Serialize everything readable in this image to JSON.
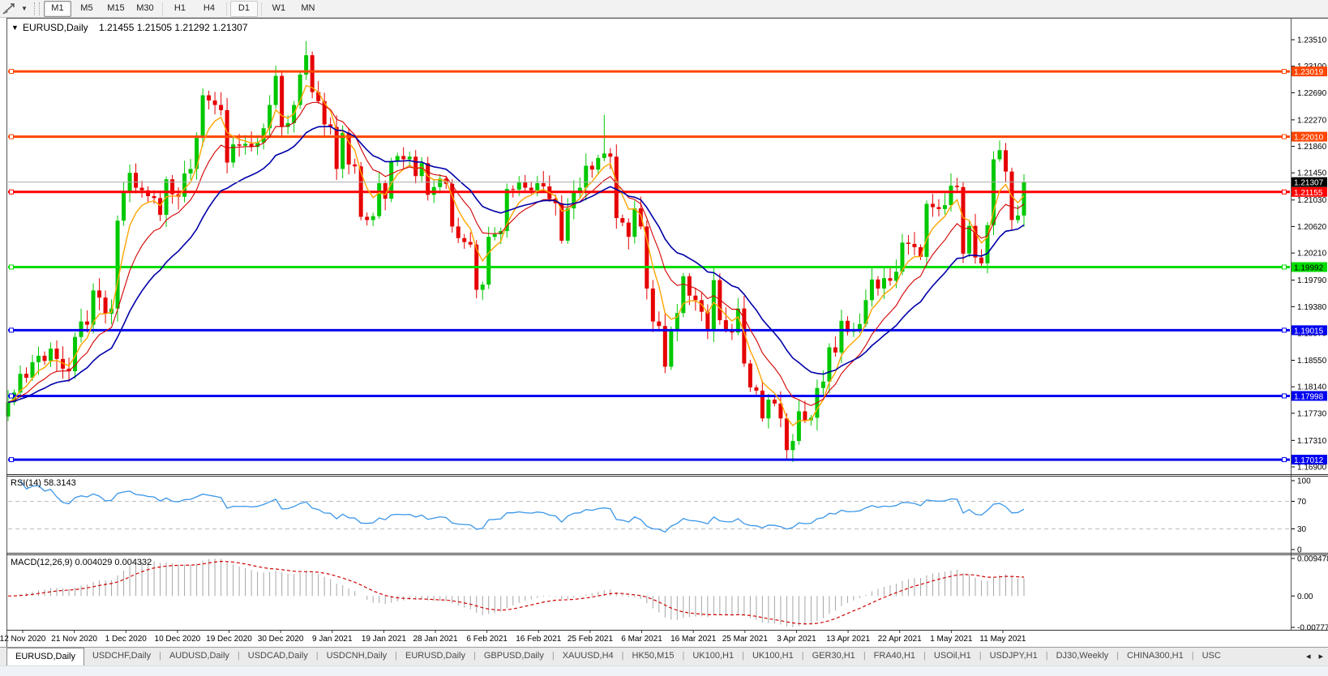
{
  "toolbar": {
    "timeframes": [
      "M1",
      "M5",
      "M15",
      "M30",
      "H1",
      "H4",
      "D1",
      "W1",
      "MN"
    ],
    "active_timeframe": "M1",
    "secondary_highlight": "D1"
  },
  "chart": {
    "title": "EURUSD,Daily",
    "quotes": "1.21455 1.21505 1.21292 1.21307",
    "price_ticks": [
      "1.23510",
      "1.23100",
      "1.22690",
      "1.22270",
      "1.21860",
      "1.21450",
      "1.21030",
      "1.20620",
      "1.20210",
      "1.19790",
      "1.19380",
      "1.18970",
      "1.18550",
      "1.18140",
      "1.17730",
      "1.17310",
      "1.16900"
    ],
    "levels": [
      {
        "label": "1.23019",
        "price": 1.23019,
        "color": "#FF4500",
        "text": "#FFFFFF"
      },
      {
        "label": "1.22010",
        "price": 1.2201,
        "color": "#FF4500",
        "text": "#FFFFFF"
      },
      {
        "label": "1.21155",
        "price": 1.21155,
        "color": "#FF0000",
        "text": "#FFFFFF"
      },
      {
        "label": "1.19992",
        "price": 1.19992,
        "color": "#00DC00",
        "text": "#000000"
      },
      {
        "label": "1.19015",
        "price": 1.19015,
        "color": "#0000F0",
        "text": "#FFFFFF"
      },
      {
        "label": "1.17998",
        "price": 1.17998,
        "color": "#0000F0",
        "text": "#FFFFFF"
      },
      {
        "label": "1.17012",
        "price": 1.17012,
        "color": "#0000F0",
        "text": "#FFFFFF"
      }
    ],
    "current_price": {
      "label": "1.21307",
      "value": 1.21307,
      "bg": "#000000",
      "text": "#FFFFFF"
    },
    "dates": [
      "12 Nov 2020",
      "21 Nov 2020",
      "1 Dec 2020",
      "10 Dec 2020",
      "19 Dec 2020",
      "30 Dec 2020",
      "9 Jan 2021",
      "19 Jan 2021",
      "28 Jan 2021",
      "6 Feb 2021",
      "16 Feb 2021",
      "25 Feb 2021",
      "6 Mar 2021",
      "16 Mar 2021",
      "25 Mar 2021",
      "3 Apr 2021",
      "13 Apr 2021",
      "22 Apr 2021",
      "1 May 2021",
      "11 May 2021"
    ],
    "candles": {
      "first_open": 1.1768,
      "closes": [
        1.179,
        1.1805,
        1.1834,
        1.1828,
        1.1852,
        1.1862,
        1.1854,
        1.1873,
        1.1857,
        1.1842,
        1.1838,
        1.1891,
        1.1915,
        1.191,
        1.1963,
        1.1952,
        1.1927,
        1.1935,
        1.2071,
        1.2115,
        1.2145,
        1.2122,
        1.2118,
        1.2109,
        1.2106,
        1.208,
        1.2135,
        1.2112,
        1.2108,
        1.2144,
        1.2151,
        1.2199,
        1.2265,
        1.2257,
        1.225,
        1.2242,
        1.2161,
        1.2189,
        1.2187,
        1.219,
        1.2185,
        1.2192,
        1.2214,
        1.225,
        1.2295,
        1.2216,
        1.2222,
        1.225,
        1.2297,
        1.2327,
        1.227,
        1.2256,
        1.222,
        1.2216,
        1.2151,
        1.2207,
        1.2158,
        1.2155,
        1.2077,
        1.2072,
        1.2078,
        1.2129,
        1.2105,
        1.2163,
        1.2171,
        1.2166,
        1.217,
        1.214,
        1.216,
        1.2111,
        1.2123,
        1.2136,
        1.2128,
        1.2062,
        1.2044,
        1.2038,
        1.2034,
        1.1964,
        1.1972,
        1.2046,
        1.205,
        1.2055,
        1.212,
        1.2119,
        1.213,
        1.2122,
        1.2118,
        1.2129,
        1.2124,
        1.2105,
        1.2098,
        1.204,
        1.209,
        1.2117,
        1.2122,
        1.2156,
        1.215,
        1.2168,
        1.2175,
        1.217,
        1.2075,
        1.2068,
        1.2046,
        1.209,
        1.2062,
        1.1966,
        1.1915,
        1.1908,
        1.1845,
        1.19,
        1.1928,
        1.1985,
        1.1955,
        1.1948,
        1.193,
        1.19,
        1.1979,
        1.1917,
        1.1903,
        1.1898,
        1.1935,
        1.185,
        1.1813,
        1.1808,
        1.1765,
        1.1794,
        1.1788,
        1.1765,
        1.1716,
        1.173,
        1.1776,
        1.1762,
        1.1766,
        1.1812,
        1.1822,
        1.1875,
        1.1867,
        1.1916,
        1.1899,
        1.1902,
        1.1911,
        1.1948,
        1.198,
        1.1966,
        1.1982,
        1.1978,
        1.1992,
        1.2037,
        1.2035,
        1.203,
        1.2015,
        1.2097,
        1.2092,
        1.2089,
        1.2095,
        1.2125,
        1.2123,
        1.202,
        1.2063,
        1.2014,
        1.2005,
        1.2064,
        1.2166,
        1.218,
        1.2147,
        1.2072,
        1.2079,
        1.21307
      ],
      "wick_overrides": {
        "18": [
          0.0008,
          0.002
        ],
        "44": [
          0.0016,
          0.0006
        ],
        "49": [
          0.0022,
          0.0008
        ],
        "98": [
          0.006,
          0.0005
        ],
        "128": [
          0.0008,
          0.0013
        ],
        "163": [
          0.0015,
          0.0004
        ],
        "165": [
          0.0006,
          0.0015
        ]
      }
    },
    "moving_averages": [
      {
        "name": "fast",
        "period": 5,
        "color": "#FFA500",
        "width": 1.4
      },
      {
        "name": "medium",
        "period": 11,
        "color": "#D40000",
        "width": 1.1
      },
      {
        "name": "slow",
        "period": 22,
        "color": "#0000A8",
        "width": 1.6
      }
    ],
    "colors": {
      "up": "#00C800",
      "down": "#E60000",
      "current_line": "#ABABAB",
      "rsi": "#3A96E8",
      "rsi_levels": "#BDBDBD",
      "macd_hist": "#A6A6A6",
      "macd_signal": "#D00000"
    }
  },
  "rsi": {
    "label": "RSI(14) 58.3143",
    "period": 14,
    "axis": [
      "100",
      "70",
      "30",
      "0"
    ],
    "axis_values": [
      100,
      70,
      30,
      0
    ],
    "level_lines": [
      70,
      30
    ]
  },
  "macd": {
    "label": "MACD(12,26,9) 0.004029 0.004332",
    "fast": 12,
    "slow": 26,
    "signal": 9,
    "axis_max": "0.009478",
    "axis_zero": "0.00",
    "axis_min": "-0.007778"
  },
  "tabs": {
    "active_index": 0,
    "items": [
      "EURUSD,Daily",
      "USDCHF,Daily",
      "AUDUSD,Daily",
      "USDCAD,Daily",
      "USDCNH,Daily",
      "EURUSD,Daily",
      "GBPUSD,Daily",
      "XAUUSD,H4",
      "HK50,M15",
      "UK100,H1",
      "UK100,H1",
      "GER30,H1",
      "FRA40,H1",
      "USOil,H1",
      "USDJPY,H1",
      "DJ30,Weekly",
      "CHINA300,H1",
      "USC"
    ],
    "left_arrow": "◂",
    "right_arrow": "▸"
  }
}
